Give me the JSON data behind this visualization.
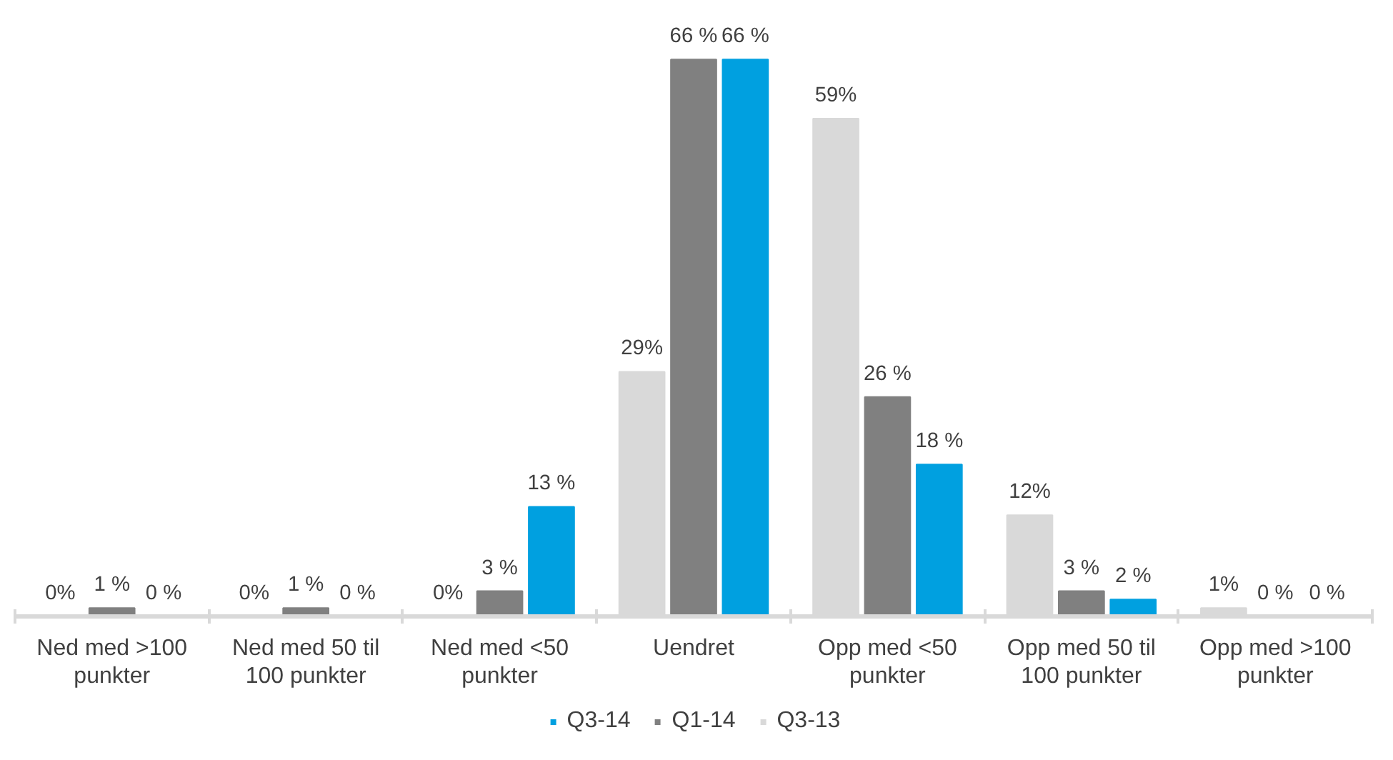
{
  "chart_data": {
    "type": "bar",
    "categories": [
      "Ned med >100 punkter",
      "Ned med 50 til 100 punkter",
      "Ned med <50 punkter",
      "Uendret",
      "Opp med <50 punkter",
      "Opp med 50 til 100 punkter",
      "Opp med >100 punkter"
    ],
    "series": [
      {
        "name": "Q3-13",
        "color": "#d9d9d9",
        "values": [
          0,
          0,
          0,
          29,
          59,
          12,
          1
        ],
        "value_labels": [
          "0%",
          "0%",
          "0%",
          "29%",
          "59%",
          "12%",
          "1%"
        ]
      },
      {
        "name": "Q1-14",
        "color": "#808080",
        "values": [
          1,
          1,
          3,
          66,
          26,
          3,
          0
        ],
        "value_labels": [
          "1 %",
          "1 %",
          "3 %",
          "66 %",
          "26 %",
          "3 %",
          "0 %"
        ]
      },
      {
        "name": "Q3-14",
        "color": "#00a0e0",
        "values": [
          0,
          0,
          13,
          66,
          18,
          2,
          0
        ],
        "value_labels": [
          "0 %",
          "0 %",
          "13 %",
          "66 %",
          "18 %",
          "2 %",
          "0 %"
        ]
      }
    ],
    "legend": "bottom",
    "grid": false
  }
}
